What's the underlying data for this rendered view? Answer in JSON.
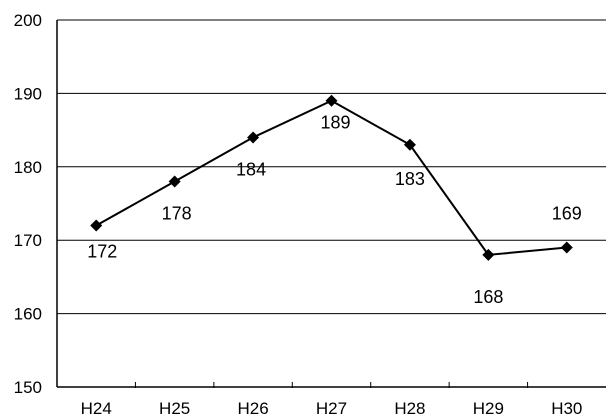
{
  "chart_data": {
    "type": "line",
    "categories": [
      "H24",
      "H25",
      "H26",
      "H27",
      "H28",
      "H29",
      "H30"
    ],
    "series": [
      {
        "values": [
          172,
          178,
          184,
          189,
          183,
          168,
          169
        ]
      }
    ],
    "ylim": [
      150,
      200
    ],
    "yticks": [
      150,
      160,
      170,
      180,
      190,
      200
    ],
    "grid": true,
    "marker": "diamond",
    "line_color": "#000000"
  }
}
